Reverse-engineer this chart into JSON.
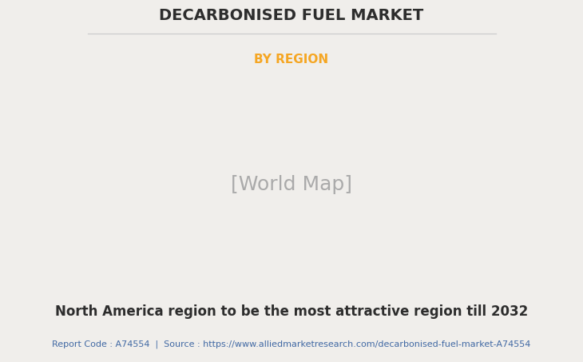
{
  "title": "DECARBONISED FUEL MARKET",
  "subtitle": "BY REGION",
  "subtitle_color": "#F5A623",
  "title_color": "#2d2d2d",
  "background_color": "#f0eeeb",
  "map_land_color": "#8fbc8f",
  "map_ocean_color": "#f0eeeb",
  "map_border_color": "#6699cc",
  "map_shadow_color": "#888888",
  "north_america_color": "#ffffff",
  "footnote_text": "North America region to be the most attractive region till 2032",
  "source_text": "Report Code : A74554  |  Source : https://www.alliedmarketresearch.com/decarbonised-fuel-market-A74554",
  "source_color": "#4169a4",
  "footnote_color": "#2d2d2d",
  "title_fontsize": 14,
  "subtitle_fontsize": 11,
  "footnote_fontsize": 12,
  "source_fontsize": 8
}
